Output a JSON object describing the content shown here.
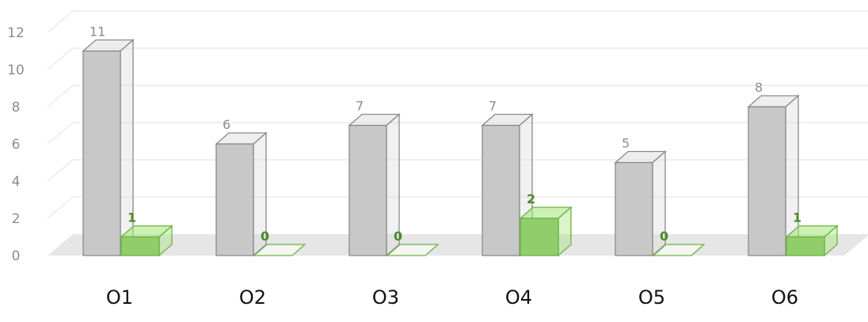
{
  "chart_data": {
    "type": "bar",
    "categories": [
      "O1",
      "O2",
      "O3",
      "O4",
      "O5",
      "O6"
    ],
    "series": [
      {
        "values": [
          11,
          6,
          7,
          7,
          5,
          8
        ],
        "color": "#c8c8c8",
        "edge_color": "#8a8a8a"
      },
      {
        "values": [
          1,
          0,
          0,
          2,
          0,
          1
        ],
        "color": "#8fce6a",
        "edge_color": "#6db33f"
      }
    ],
    "ylim": [
      0,
      12
    ],
    "yticks": [
      0,
      2,
      4,
      6,
      8,
      10,
      12
    ],
    "grid": true,
    "legend": "none",
    "style": "3d"
  }
}
